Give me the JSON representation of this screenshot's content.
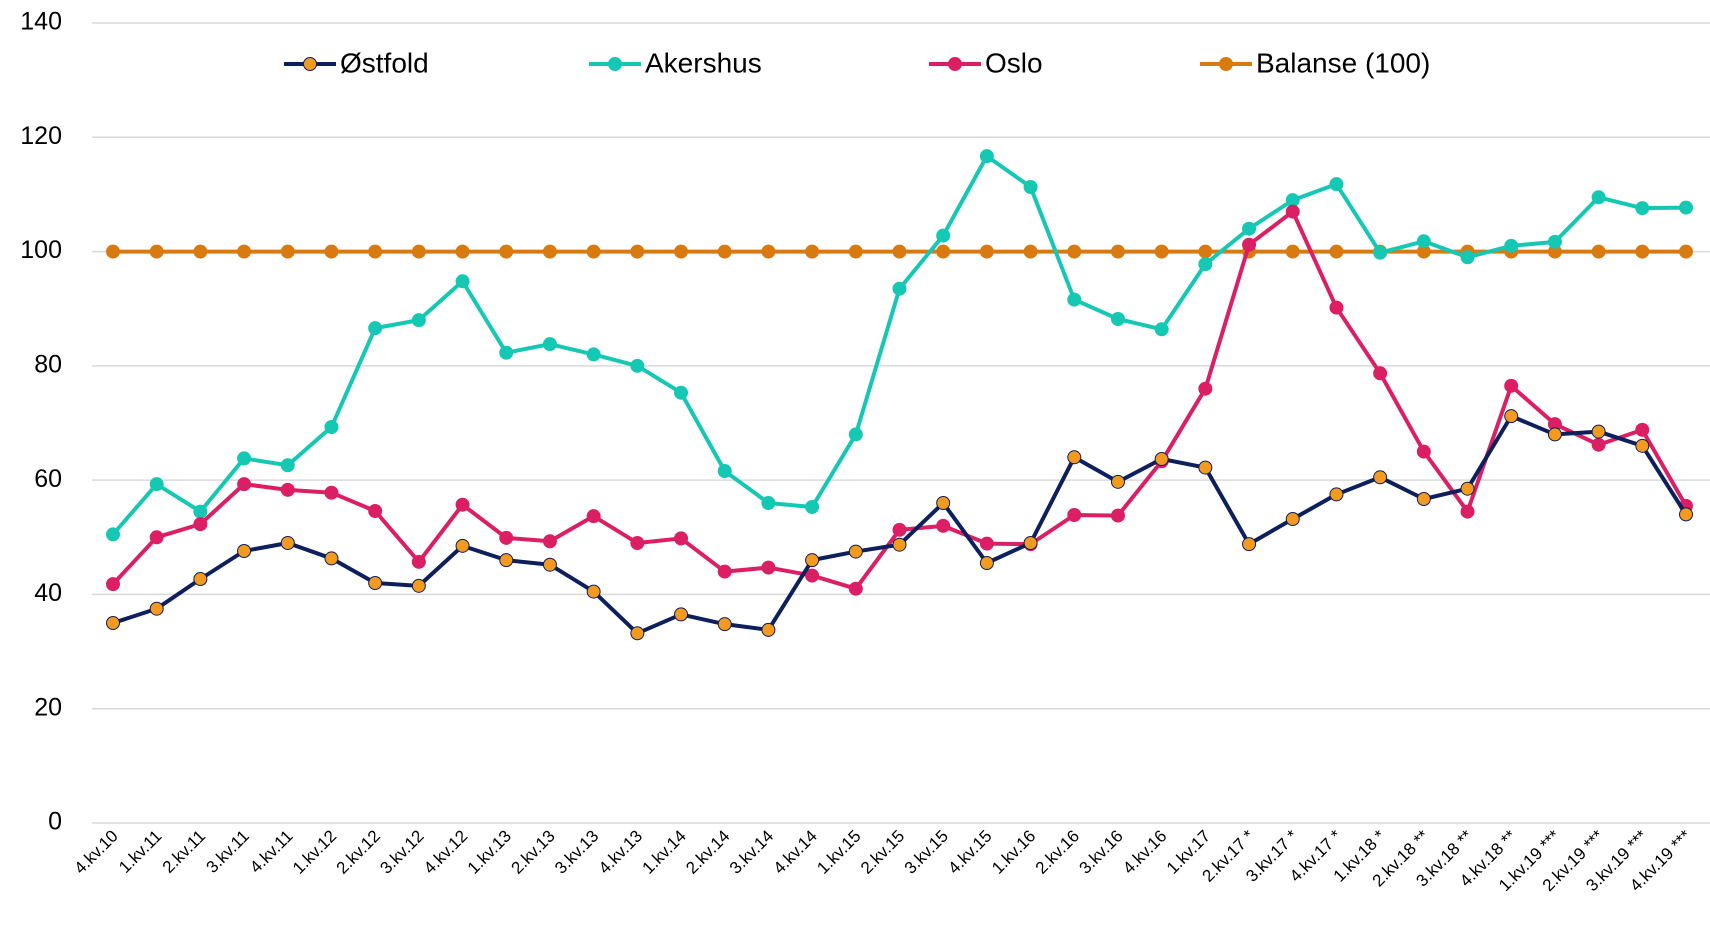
{
  "chart_data": {
    "type": "line",
    "categories": [
      "4.kv.10",
      "1.kv.11",
      "2.kv.11",
      "3.kv.11",
      "4.kv.11",
      "1.kv.12",
      "2.kv.12",
      "3.kv.12",
      "4.kv.12",
      "1.kv.13",
      "2.kv.13",
      "3.kv.13",
      "4.kv.13",
      "1.kv.14",
      "2.kv.14",
      "3.kv.14",
      "4.kv.14",
      "1.kv.15",
      "2.kv.15",
      "3.kv.15",
      "4.kv.15",
      "1.kv.16",
      "2.kv.16",
      "3.kv.16",
      "4.kv.16",
      "1.kv.17",
      "2.kv.17 *",
      "3.kv.17 *",
      "4.kv.17 *",
      "1.kv.18 *",
      "2.kv.18 **",
      "3.kv.18 **",
      "4.kv.18 **",
      "1.kv.19 ***",
      "2.kv.19 ***",
      "3.kv.19 ***",
      "4.kv.19 ***"
    ],
    "series": [
      {
        "name": "Østfold",
        "color": "#0d1f5c",
        "marker_color": "#f39a1f",
        "values": [
          35,
          37.5,
          42.7,
          47.6,
          49,
          46.3,
          42,
          41.5,
          48.5,
          46,
          45.2,
          40.5,
          33.2,
          36.5,
          34.8,
          33.8,
          46,
          47.5,
          48.7,
          56,
          45.5,
          49,
          64,
          59.7,
          63.7,
          62.2,
          48.8,
          53.2,
          57.5,
          60.5,
          56.7,
          58.5,
          71.2,
          68,
          68.5,
          66,
          54
        ]
      },
      {
        "name": "Akershus",
        "color": "#14c8b4",
        "marker_color": "#14c8b4",
        "values": [
          50.5,
          59.3,
          54.5,
          63.8,
          62.6,
          69.3,
          86.6,
          88,
          94.8,
          82.3,
          83.8,
          82,
          80,
          75.3,
          61.6,
          56,
          55.3,
          68,
          93.5,
          102.8,
          116.7,
          111.3,
          91.6,
          88.2,
          86.4,
          97.8,
          104,
          109,
          111.8,
          99.8,
          101.8,
          99,
          101,
          101.7,
          109.5,
          107.6,
          107.7
        ]
      },
      {
        "name": "Oslo",
        "color": "#dc1e64",
        "marker_color": "#dc1e64",
        "values": [
          41.8,
          50,
          52.3,
          59.3,
          58.3,
          57.8,
          54.6,
          45.7,
          55.7,
          49.9,
          49.3,
          53.7,
          49,
          49.8,
          44,
          44.7,
          43.3,
          41,
          51.3,
          52,
          48.9,
          48.8,
          53.9,
          53.8,
          63.3,
          76,
          101.2,
          107,
          90.2,
          78.7,
          65,
          54.5,
          76.5,
          69.8,
          66.2,
          68.8,
          55.5
        ]
      },
      {
        "name": "Balanse (100)",
        "color": "#d87a10",
        "marker_color": "#d87a10",
        "values": [
          100,
          100,
          100,
          100,
          100,
          100,
          100,
          100,
          100,
          100,
          100,
          100,
          100,
          100,
          100,
          100,
          100,
          100,
          100,
          100,
          100,
          100,
          100,
          100,
          100,
          100,
          100,
          100,
          100,
          100,
          100,
          100,
          100,
          100,
          100,
          100,
          100
        ]
      }
    ],
    "ylim": [
      0,
      140
    ],
    "yticks": [
      0,
      20,
      40,
      60,
      80,
      100,
      120,
      140
    ],
    "grid": true,
    "legend": "top"
  }
}
